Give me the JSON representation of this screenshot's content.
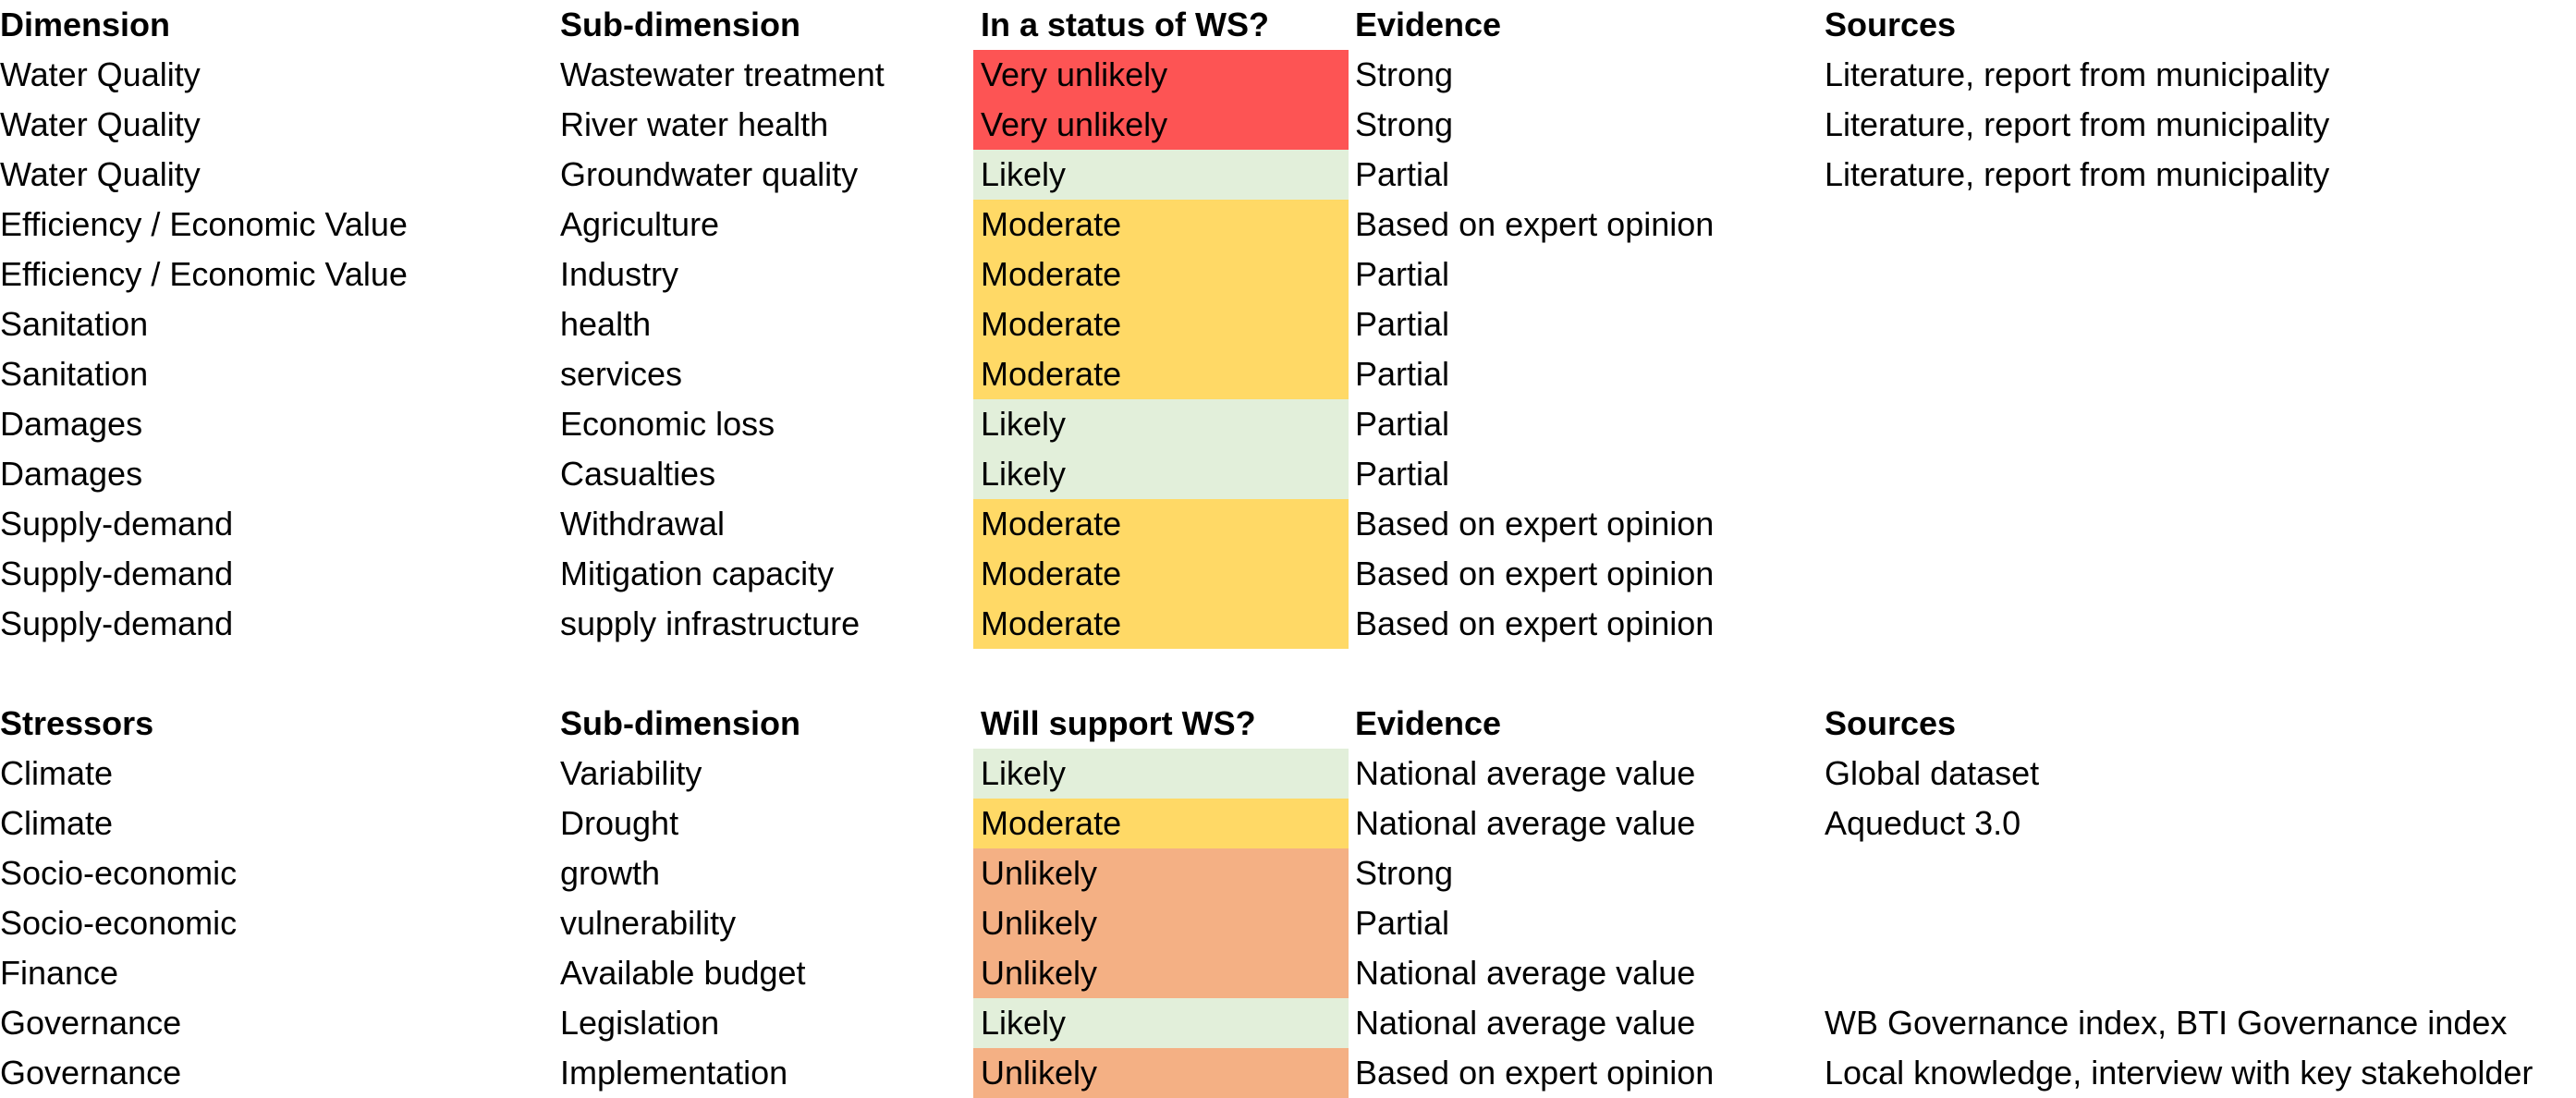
{
  "dimensions_table": {
    "headers": {
      "dimension": "Dimension",
      "sub_dimension": "Sub-dimension",
      "status": "In a status of WS?",
      "evidence": "Evidence",
      "sources": "Sources"
    },
    "rows": [
      {
        "dimension": "Water Quality",
        "sub_dimension": "Wastewater treatment",
        "status": "Very unlikely",
        "status_level": 1,
        "evidence": "Strong",
        "sources": "Literature, report from municipality"
      },
      {
        "dimension": "Water Quality",
        "sub_dimension": "River water health",
        "status": "Very unlikely",
        "status_level": 1,
        "evidence": "Strong",
        "sources": "Literature, report from municipality"
      },
      {
        "dimension": "Water Quality",
        "sub_dimension": "Groundwater quality",
        "status": "Likely",
        "status_level": 4,
        "evidence": "Partial",
        "sources": "Literature, report from municipality"
      },
      {
        "dimension": "Efficiency / Economic Value",
        "sub_dimension": "Agriculture",
        "status": "Moderate",
        "status_level": 3,
        "evidence": "Based on expert opinion",
        "sources": ""
      },
      {
        "dimension": "Efficiency / Economic Value",
        "sub_dimension": "Industry",
        "status": "Moderate",
        "status_level": 3,
        "evidence": "Partial",
        "sources": ""
      },
      {
        "dimension": "Sanitation",
        "sub_dimension": "health",
        "status": "Moderate",
        "status_level": 3,
        "evidence": "Partial",
        "sources": ""
      },
      {
        "dimension": "Sanitation",
        "sub_dimension": "services",
        "status": "Moderate",
        "status_level": 3,
        "evidence": "Partial",
        "sources": ""
      },
      {
        "dimension": "Damages",
        "sub_dimension": "Economic loss",
        "status": "Likely",
        "status_level": 4,
        "evidence": "Partial",
        "sources": ""
      },
      {
        "dimension": "Damages",
        "sub_dimension": "Casualties",
        "status": "Likely",
        "status_level": 4,
        "evidence": "Partial",
        "sources": ""
      },
      {
        "dimension": "Supply-demand",
        "sub_dimension": "Withdrawal",
        "status": "Moderate",
        "status_level": 3,
        "evidence": "Based on expert opinion",
        "sources": ""
      },
      {
        "dimension": "Supply-demand",
        "sub_dimension": "Mitigation capacity",
        "status": "Moderate",
        "status_level": 3,
        "evidence": "Based on expert opinion",
        "sources": ""
      },
      {
        "dimension": "Supply-demand",
        "sub_dimension": "supply infrastructure",
        "status": "Moderate",
        "status_level": 3,
        "evidence": "Based on expert opinion",
        "sources": ""
      }
    ]
  },
  "stressors_table": {
    "headers": {
      "dimension": "Stressors",
      "sub_dimension": "Sub-dimension",
      "status": "Will support WS?",
      "evidence": "Evidence",
      "sources": "Sources"
    },
    "rows": [
      {
        "dimension": "Climate",
        "sub_dimension": "Variability",
        "status": "Likely",
        "status_level": 4,
        "evidence": "National average value",
        "sources": "Global dataset"
      },
      {
        "dimension": "Climate",
        "sub_dimension": "Drought",
        "status": "Moderate",
        "status_level": 3,
        "evidence": "National average value",
        "sources": "Aqueduct 3.0"
      },
      {
        "dimension": "Socio-economic",
        "sub_dimension": "growth",
        "status": "Unlikely",
        "status_level": 2,
        "evidence": "Strong",
        "sources": ""
      },
      {
        "dimension": "Socio-economic",
        "sub_dimension": "vulnerability",
        "status": "Unlikely",
        "status_level": 2,
        "evidence": "Partial",
        "sources": ""
      },
      {
        "dimension": "Finance",
        "sub_dimension": "Available budget",
        "status": "Unlikely",
        "status_level": 2,
        "evidence": "National average value",
        "sources": ""
      },
      {
        "dimension": "Governance",
        "sub_dimension": "Legislation",
        "status": "Likely",
        "status_level": 4,
        "evidence": "National average value",
        "sources": "WB Governance index, BTI Governance index"
      },
      {
        "dimension": "Governance",
        "sub_dimension": "Implementation",
        "status": "Unlikely",
        "status_level": 2,
        "evidence": "Based on expert opinion",
        "sources": "Local knowledge, interview with key stakeholder"
      }
    ]
  },
  "status_colors": {
    "very_unlikely": "#fd5454",
    "unlikely": "#f4b084",
    "moderate": "#ffd966",
    "likely": "#e2efda"
  }
}
